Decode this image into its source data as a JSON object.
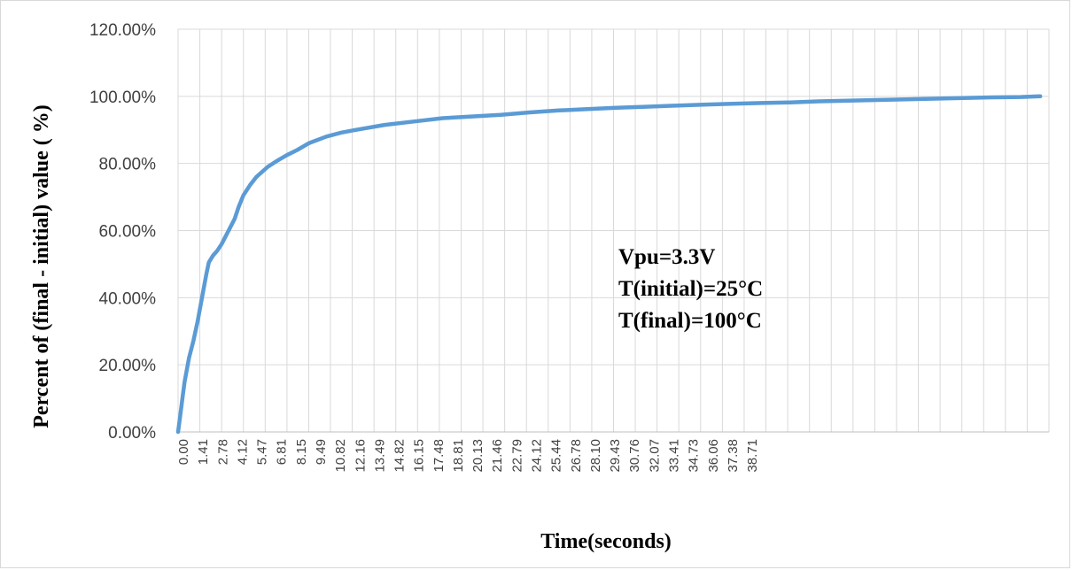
{
  "chart_data": {
    "type": "line",
    "title": "",
    "xlabel": "Time(seconds)",
    "ylabel": "Percent of (final - initial) value ( %)",
    "ylim": [
      0,
      120
    ],
    "xlim": [
      0,
      40
    ],
    "grid": true,
    "legend": "none",
    "y_ticks": [
      "0.00%",
      "20.00%",
      "40.00%",
      "60.00%",
      "80.00%",
      "100.00%",
      "120.00%"
    ],
    "x_ticks": [
      "0.00",
      "1.41",
      "2.78",
      "4.12",
      "5.47",
      "6.81",
      "8.15",
      "9.49",
      "10.82",
      "12.16",
      "13.49",
      "14.82",
      "16.15",
      "17.48",
      "18.81",
      "20.13",
      "21.46",
      "22.79",
      "24.12",
      "25.44",
      "26.78",
      "28.10",
      "29.43",
      "30.76",
      "32.07",
      "33.41",
      "34.73",
      "36.06",
      "37.38",
      "38.71"
    ],
    "annotation": [
      "Vpu=3.3V",
      "T(initial)=25°C",
      "T(final)=100°C"
    ],
    "line_color": "#5B9BD5",
    "series": [
      {
        "x": [
          0.0,
          0.1,
          0.2,
          0.3,
          0.5,
          0.7,
          0.9,
          1.1,
          1.3,
          1.41,
          1.6,
          1.8,
          2.0,
          2.2,
          2.4,
          2.6,
          2.78,
          3.0,
          3.3,
          3.6,
          4.12,
          4.6,
          5.0,
          5.47,
          6.0,
          6.81,
          7.5,
          8.15,
          9.49,
          10.82,
          12.16,
          13.49,
          14.82,
          16.15,
          17.48,
          18.81,
          20.13,
          21.46,
          22.79,
          24.12,
          25.44,
          26.78,
          28.1,
          29.43,
          30.76,
          32.07,
          33.41,
          34.73,
          36.06,
          37.38,
          38.71,
          39.6
        ],
        "y": [
          0,
          5,
          10,
          15,
          22,
          27,
          33,
          40,
          47,
          50.5,
          52.5,
          54,
          56,
          58.5,
          61,
          63.5,
          67,
          70.5,
          73.5,
          76,
          79,
          81,
          82.5,
          84,
          86,
          88,
          89.2,
          90,
          91.5,
          92.5,
          93.5,
          94,
          94.5,
          95.2,
          95.8,
          96.2,
          96.6,
          96.9,
          97.2,
          97.5,
          97.8,
          98,
          98.2,
          98.5,
          98.7,
          98.9,
          99.1,
          99.3,
          99.5,
          99.7,
          99.8,
          100
        ]
      }
    ]
  }
}
